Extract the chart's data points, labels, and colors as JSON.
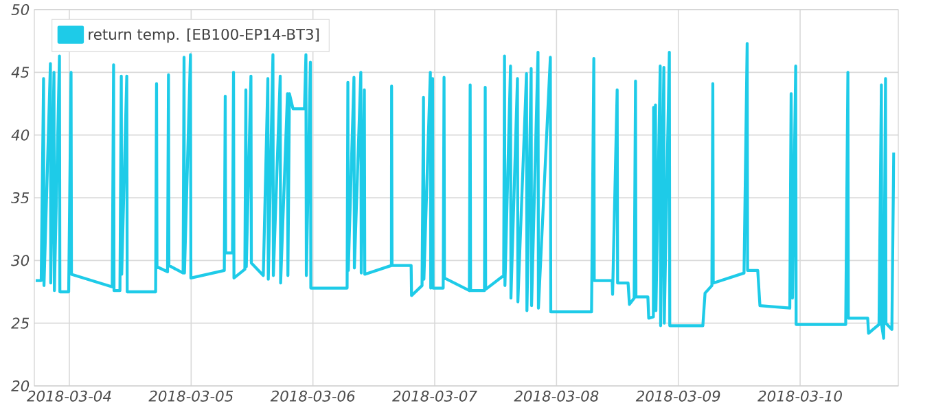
{
  "chart_data": {
    "type": "line",
    "legend": "top left",
    "grid": true,
    "marker": "none",
    "line_style": "solid",
    "xlim": [
      "2018-03-03T17:06",
      "2018-03-10T19:21"
    ],
    "xticks": [
      "2018-03-04",
      "2018-03-05",
      "2018-03-06",
      "2018-03-07",
      "2018-03-08",
      "2018-03-09",
      "2018-03-10"
    ],
    "ylim": [
      20,
      50
    ],
    "yticks": [
      20,
      25,
      30,
      35,
      40,
      45,
      50
    ],
    "x": [
      "2018-03-03T17:22",
      "2018-03-03T18:27",
      "2018-03-03T18:55",
      "2018-03-03T19:00",
      "2018-03-03T20:16",
      "2018-03-03T20:20",
      "2018-03-03T20:58",
      "2018-03-03T21:03",
      "2018-03-03T22:03",
      "2018-03-03T22:08",
      "2018-03-03T23:52",
      "2018-03-04T00:20",
      "2018-03-04T00:25",
      "2018-03-04T08:27",
      "2018-03-04T08:43",
      "2018-03-04T08:48",
      "2018-03-04T09:58",
      "2018-03-04T10:14",
      "2018-03-04T10:19",
      "2018-03-04T11:19",
      "2018-03-04T11:24",
      "2018-03-04T17:00",
      "2018-03-04T17:11",
      "2018-03-04T17:16",
      "2018-03-04T19:21",
      "2018-03-04T19:32",
      "2018-03-04T19:37",
      "2018-03-04T22:25",
      "2018-03-04T22:36",
      "2018-03-04T22:41",
      "2018-03-04T23:52",
      "2018-03-04T23:57",
      "2018-03-05T06:32",
      "2018-03-05T06:43",
      "2018-03-05T06:48",
      "2018-03-05T08:09",
      "2018-03-05T08:21",
      "2018-03-05T08:26",
      "2018-03-05T10:35",
      "2018-03-05T10:47",
      "2018-03-05T10:52",
      "2018-03-05T11:47",
      "2018-03-05T11:52",
      "2018-03-05T14:13",
      "2018-03-05T15:07",
      "2018-03-05T15:12",
      "2018-03-05T16:07",
      "2018-03-05T16:12",
      "2018-03-05T17:33",
      "2018-03-05T17:38",
      "2018-03-05T18:59",
      "2018-03-05T19:04",
      "2018-03-05T19:22",
      "2018-03-05T20:04",
      "2018-03-05T22:20",
      "2018-03-05T22:37",
      "2018-03-05T22:42",
      "2018-03-05T23:30",
      "2018-03-05T23:35",
      "2018-03-06T06:44",
      "2018-03-06T06:53",
      "2018-03-06T06:58",
      "2018-03-06T08:05",
      "2018-03-06T08:10",
      "2018-03-06T09:26",
      "2018-03-06T09:31",
      "2018-03-06T10:08",
      "2018-03-06T10:13",
      "2018-03-06T15:28",
      "2018-03-06T15:30",
      "2018-03-06T15:35",
      "2018-03-06T19:21",
      "2018-03-06T19:26",
      "2018-03-06T21:30",
      "2018-03-06T21:47",
      "2018-03-06T21:52",
      "2018-03-06T23:08",
      "2018-03-06T23:13",
      "2018-03-06T23:35",
      "2018-03-06T23:40",
      "2018-03-07T01:40",
      "2018-03-07T01:50",
      "2018-03-07T01:55",
      "2018-03-07T06:49",
      "2018-03-07T06:59",
      "2018-03-07T07:04",
      "2018-03-07T09:48",
      "2018-03-07T09:57",
      "2018-03-07T10:02",
      "2018-03-07T13:35",
      "2018-03-07T13:45",
      "2018-03-07T13:50",
      "2018-03-07T14:56",
      "2018-03-07T15:01",
      "2018-03-07T16:18",
      "2018-03-07T16:23",
      "2018-03-07T18:05",
      "2018-03-07T18:10",
      "2018-03-07T19:00",
      "2018-03-07T19:05",
      "2018-03-07T20:21",
      "2018-03-07T20:26",
      "2018-03-07T22:47",
      "2018-03-07T22:52",
      "2018-03-08T06:54",
      "2018-03-08T07:21",
      "2018-03-08T07:26",
      "2018-03-08T10:58",
      "2018-03-08T11:03",
      "2018-03-08T11:57",
      "2018-03-08T12:02",
      "2018-03-08T14:06",
      "2018-03-08T14:22",
      "2018-03-08T15:18",
      "2018-03-08T15:34",
      "2018-03-08T15:39",
      "2018-03-08T18:00",
      "2018-03-08T18:10",
      "2018-03-08T19:05",
      "2018-03-08T19:08",
      "2018-03-08T19:12",
      "2018-03-08T19:30",
      "2018-03-08T19:35",
      "2018-03-08T20:26",
      "2018-03-08T20:31",
      "2018-03-08T21:09",
      "2018-03-08T21:14",
      "2018-03-08T22:14",
      "2018-03-08T22:19",
      "2018-03-09T04:50",
      "2018-03-09T05:16",
      "2018-03-09T06:37",
      "2018-03-09T06:48",
      "2018-03-09T06:53",
      "2018-03-09T12:57",
      "2018-03-09T13:34",
      "2018-03-09T13:39",
      "2018-03-09T15:39",
      "2018-03-09T16:05",
      "2018-03-09T21:58",
      "2018-03-09T22:14",
      "2018-03-09T22:30",
      "2018-03-09T23:08",
      "2018-03-09T23:13",
      "2018-03-10T08:59",
      "2018-03-10T09:25",
      "2018-03-10T09:30",
      "2018-03-10T13:19",
      "2018-03-10T13:29",
      "2018-03-10T15:33",
      "2018-03-10T16:01",
      "2018-03-10T16:06",
      "2018-03-10T16:28",
      "2018-03-10T16:50",
      "2018-03-10T16:55",
      "2018-03-10T18:05",
      "2018-03-10T18:27"
    ],
    "series": [
      {
        "name": "return temp. [EB100-EP14-BT3]",
        "color": "#1ecbe8",
        "values": [
          28.4,
          28.4,
          44.5,
          28.0,
          45.7,
          28.2,
          45.0,
          27.6,
          46.3,
          27.5,
          27.5,
          45.0,
          28.9,
          27.9,
          45.6,
          27.6,
          27.6,
          44.7,
          28.9,
          44.7,
          27.5,
          27.5,
          44.1,
          29.5,
          29.1,
          44.8,
          29.6,
          29.0,
          46.2,
          29.0,
          46.4,
          28.6,
          29.2,
          43.1,
          30.6,
          30.6,
          45.0,
          28.6,
          29.3,
          43.6,
          29.5,
          44.7,
          29.8,
          28.8,
          44.5,
          28.5,
          46.4,
          28.8,
          44.7,
          28.2,
          43.3,
          28.8,
          43.3,
          42.1,
          42.1,
          46.4,
          28.8,
          45.8,
          27.8,
          27.8,
          44.2,
          29.2,
          44.6,
          29.4,
          45.0,
          29.0,
          43.6,
          28.9,
          29.6,
          43.9,
          29.6,
          29.6,
          27.2,
          28.0,
          43.0,
          28.5,
          45.0,
          27.8,
          44.5,
          27.8,
          27.8,
          44.6,
          28.6,
          27.6,
          44.0,
          27.6,
          27.6,
          43.8,
          27.7,
          28.8,
          46.3,
          28.0,
          45.5,
          27.0,
          44.5,
          26.7,
          44.9,
          26.0,
          45.3,
          26.4,
          46.6,
          26.2,
          46.2,
          25.9,
          25.9,
          46.1,
          28.4,
          28.4,
          27.3,
          43.6,
          28.2,
          28.2,
          26.5,
          27.0,
          44.3,
          27.1,
          27.1,
          25.4,
          25.5,
          42.2,
          26.0,
          42.4,
          26.0,
          45.5,
          24.8,
          45.4,
          25.0,
          46.6,
          24.8,
          24.8,
          27.4,
          28.0,
          44.1,
          28.2,
          29.0,
          47.3,
          29.2,
          29.2,
          26.4,
          26.2,
          43.3,
          27.0,
          45.5,
          24.9,
          24.9,
          45.0,
          25.4,
          25.4,
          24.2,
          24.9,
          44.0,
          24.8,
          23.8,
          44.5,
          25.0,
          24.5,
          38.6
        ]
      }
    ]
  }
}
